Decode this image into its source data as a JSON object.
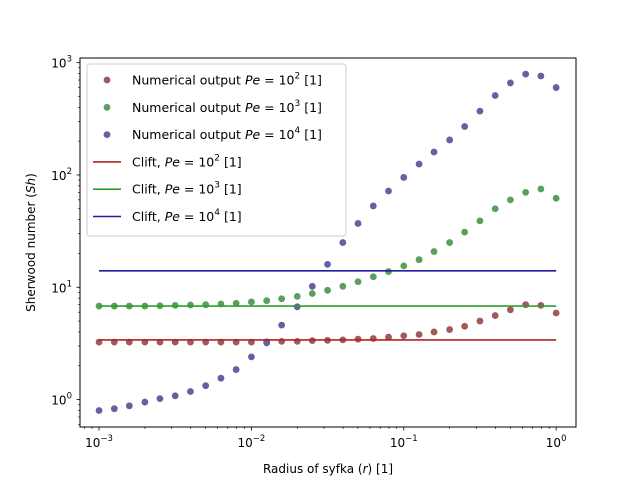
{
  "chart_data": {
    "type": "scatter",
    "xlabel_parts": [
      "Radius of syfka (",
      "r",
      ") [1]"
    ],
    "ylabel_parts": [
      "Sherwood number (",
      "Sh",
      ")"
    ],
    "xscale": "log",
    "yscale": "log",
    "xlim": [
      0.00075,
      1.35
    ],
    "ylim": [
      0.57,
      1100
    ],
    "grid": false,
    "legend_position": "top-left",
    "x_ticks": [
      {
        "value": 0.001,
        "base": "10",
        "exp": "−3"
      },
      {
        "value": 0.01,
        "base": "10",
        "exp": "−2"
      },
      {
        "value": 0.1,
        "base": "10",
        "exp": "−1"
      },
      {
        "value": 1,
        "base": "10",
        "exp": "0"
      }
    ],
    "y_ticks": [
      {
        "value": 1,
        "base": "10",
        "exp": "0"
      },
      {
        "value": 10,
        "base": "10",
        "exp": "1"
      },
      {
        "value": 100,
        "base": "10",
        "exp": "2"
      },
      {
        "value": 1000,
        "base": "10",
        "exp": "3"
      }
    ],
    "x": [
      0.001,
      0.00126,
      0.00158,
      0.002,
      0.00251,
      0.00316,
      0.00398,
      0.00501,
      0.00631,
      0.00794,
      0.01,
      0.0126,
      0.0158,
      0.02,
      0.0251,
      0.0316,
      0.0398,
      0.0501,
      0.0631,
      0.0794,
      0.1,
      0.126,
      0.158,
      0.2,
      0.251,
      0.316,
      0.398,
      0.501,
      0.631,
      0.794,
      1.0
    ],
    "series": [
      {
        "prefix": "Numerical output ",
        "pe": "10",
        "pe_exp": "2",
        "suffix": " [1]",
        "kind": "scatter",
        "color": "#a05a5a",
        "y": [
          3.25,
          3.25,
          3.25,
          3.25,
          3.25,
          3.25,
          3.25,
          3.25,
          3.25,
          3.25,
          3.25,
          3.27,
          3.3,
          3.3,
          3.35,
          3.37,
          3.4,
          3.45,
          3.5,
          3.6,
          3.7,
          3.8,
          4.0,
          4.2,
          4.5,
          5.0,
          5.6,
          6.3,
          7.0,
          6.9,
          5.9
        ]
      },
      {
        "prefix": "Numerical output ",
        "pe": "10",
        "pe_exp": "3",
        "suffix": " [1]",
        "kind": "scatter",
        "color": "#5aa05a",
        "y": [
          6.8,
          6.8,
          6.8,
          6.8,
          6.85,
          6.9,
          6.95,
          7.0,
          7.1,
          7.2,
          7.4,
          7.6,
          7.9,
          8.3,
          8.8,
          9.4,
          10.2,
          11.2,
          12.4,
          13.8,
          15.5,
          17.6,
          20.8,
          25.0,
          31.0,
          39.0,
          50.0,
          60.0,
          70.0,
          75.0,
          62.0
        ]
      },
      {
        "prefix": "Numerical output ",
        "pe": "10",
        "pe_exp": "4",
        "suffix": " [1]",
        "kind": "scatter",
        "color": "#6262a2",
        "y": [
          0.8,
          0.83,
          0.88,
          0.95,
          1.02,
          1.08,
          1.18,
          1.33,
          1.55,
          1.85,
          2.4,
          3.2,
          4.6,
          6.7,
          10.2,
          16.0,
          25.0,
          37.0,
          53.0,
          72.0,
          95.0,
          125.0,
          160.0,
          205.0,
          270.0,
          370.0,
          510.0,
          660.0,
          790.0,
          760.0,
          600.0
        ]
      },
      {
        "prefix": "Clift, ",
        "pe": "10",
        "pe_exp": "2",
        "suffix": " [1]",
        "kind": "line",
        "color": "#b22222",
        "y_const": 3.4
      },
      {
        "prefix": "Clift, ",
        "pe": "10",
        "pe_exp": "3",
        "suffix": " [1]",
        "kind": "line",
        "color": "#2ca02c",
        "y_const": 6.8
      },
      {
        "prefix": "Clift, ",
        "pe": "10",
        "pe_exp": "4",
        "suffix": " [1]",
        "kind": "line",
        "color": "#1f1f9f",
        "y_const": 14.0
      }
    ]
  }
}
